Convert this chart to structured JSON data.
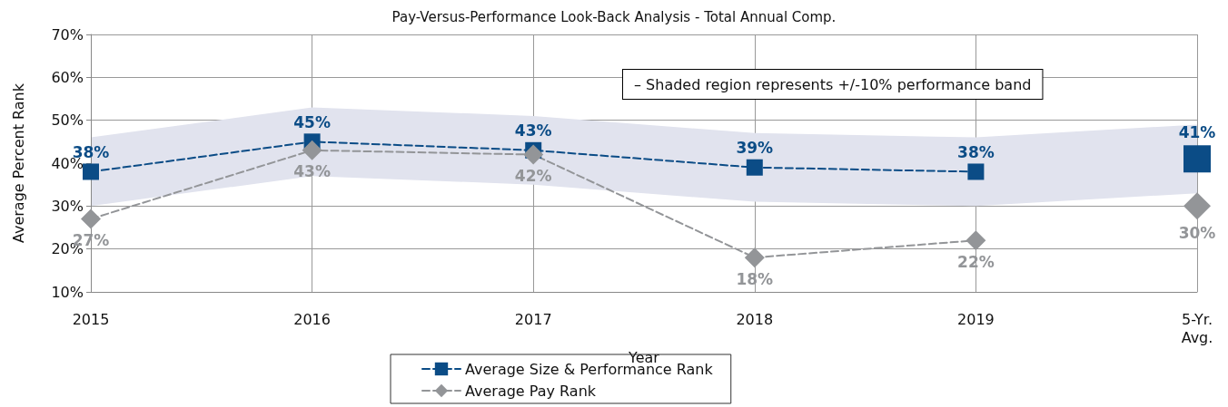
{
  "chart_data": {
    "type": "line",
    "title": "Pay-Versus-Performance Look-Back Analysis - Total Annual Comp.",
    "xlabel": "Year",
    "ylabel": "Average Percent Rank",
    "categories": [
      "2015",
      "2016",
      "2017",
      "2018",
      "2019",
      "5-Yr.\nAvg."
    ],
    "series": [
      {
        "name": "Average Size & Performance Rank",
        "color": "#0b4c86",
        "marker": "square",
        "line_style": "dashed",
        "values": [
          38,
          45,
          43,
          39,
          38,
          null
        ],
        "lower": [
          30,
          37,
          35,
          31,
          30,
          33
        ],
        "upper": [
          46,
          53,
          51,
          47,
          46,
          49
        ],
        "value_labels": [
          "38%",
          "45%",
          "43%",
          "39%",
          "38%",
          null
        ]
      },
      {
        "name": "Average Pay Rank",
        "color": "#939598",
        "marker": "diamond",
        "line_style": "dashed",
        "values": [
          27,
          43,
          42,
          18,
          22,
          null
        ],
        "value_labels": [
          "27%",
          "43%",
          "42%",
          "18%",
          "22%",
          null
        ]
      },
      {
        "type": "scatter",
        "color": "#0b4c86",
        "marker": "square",
        "x": [
          "5-Yr.\nAvg."
        ],
        "values": [
          41
        ],
        "value_labels": [
          "41%"
        ]
      },
      {
        "type": "scatter",
        "color": "#939598",
        "marker": "diamond",
        "x": [
          "5-Yr.\nAvg."
        ],
        "values": [
          30
        ],
        "value_labels": [
          "30%"
        ]
      }
    ],
    "ylim": [
      10,
      70
    ],
    "yticks": [
      {
        "value": 10,
        "label": "10%"
      },
      {
        "value": 20,
        "label": "20%"
      },
      {
        "value": 30,
        "label": "30%"
      },
      {
        "value": 40,
        "label": "40%"
      },
      {
        "value": 50,
        "label": "50%"
      },
      {
        "value": 60,
        "label": "60%"
      },
      {
        "value": 70,
        "label": "70%"
      }
    ],
    "grid": true,
    "legend": "bottom",
    "annotations": [
      "– Shaded region represents +/-10% performance band"
    ]
  }
}
